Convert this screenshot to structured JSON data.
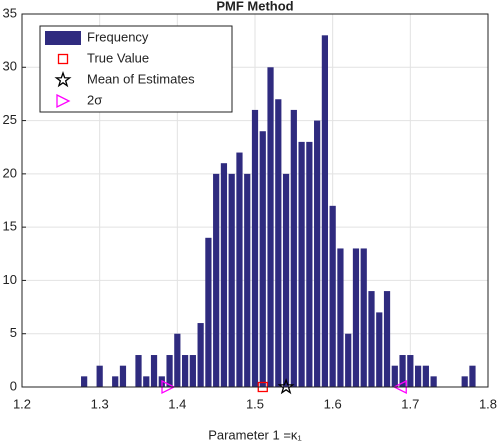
{
  "chart_data": {
    "type": "histogram",
    "title": "PMF Method",
    "xlabel": "Parameter 1 =κ₁",
    "bins": [
      1.275,
      1.285,
      1.295,
      1.305,
      1.315,
      1.325,
      1.335,
      1.345,
      1.355,
      1.365,
      1.375,
      1.385,
      1.395,
      1.405,
      1.415,
      1.425,
      1.435,
      1.445,
      1.455,
      1.465,
      1.475,
      1.485,
      1.495,
      1.505,
      1.515,
      1.525,
      1.535,
      1.545,
      1.555,
      1.565,
      1.575,
      1.585,
      1.595,
      1.605,
      1.615,
      1.625,
      1.635,
      1.645,
      1.655,
      1.665,
      1.675,
      1.685,
      1.695,
      1.705,
      1.715,
      1.725,
      1.735,
      1.745,
      1.755,
      1.765,
      1.775,
      1.785
    ],
    "series": [
      {
        "name": "Frequency",
        "color": "#2f2b7f",
        "values": [
          1,
          0,
          2,
          0,
          1,
          2,
          0,
          3,
          1,
          3,
          1,
          3,
          5,
          3,
          3,
          6,
          14,
          20,
          21,
          20,
          22,
          20,
          26,
          24,
          30,
          27,
          20,
          26,
          23,
          23,
          25,
          33,
          17,
          13,
          5,
          13,
          13,
          9,
          7,
          9,
          2,
          3,
          3,
          2,
          2,
          1,
          0,
          0,
          0,
          1,
          2
        ]
      }
    ],
    "markers": [
      {
        "name": "True Value",
        "color": "#ff0000",
        "shape": "square",
        "x": [
          1.51
        ],
        "y": [
          0
        ]
      },
      {
        "name": "Mean of Estimates",
        "color": "#000000",
        "shape": "star",
        "x": [
          1.54
        ],
        "y": [
          0
        ]
      },
      {
        "name": "2σ",
        "color": "#ff00ff",
        "shape": "triangle",
        "x": [
          1.388,
          1.687
        ],
        "y": [
          0,
          0
        ]
      }
    ],
    "xlim": [
      1.2,
      1.8
    ],
    "xticks": [
      1.2,
      1.3,
      1.4,
      1.5,
      1.6,
      1.7,
      1.8
    ],
    "ylim": [
      0,
      35
    ],
    "yticks": [
      0,
      5,
      10,
      15,
      20,
      25,
      30,
      35
    ],
    "grid": true,
    "legend": "upper left"
  }
}
